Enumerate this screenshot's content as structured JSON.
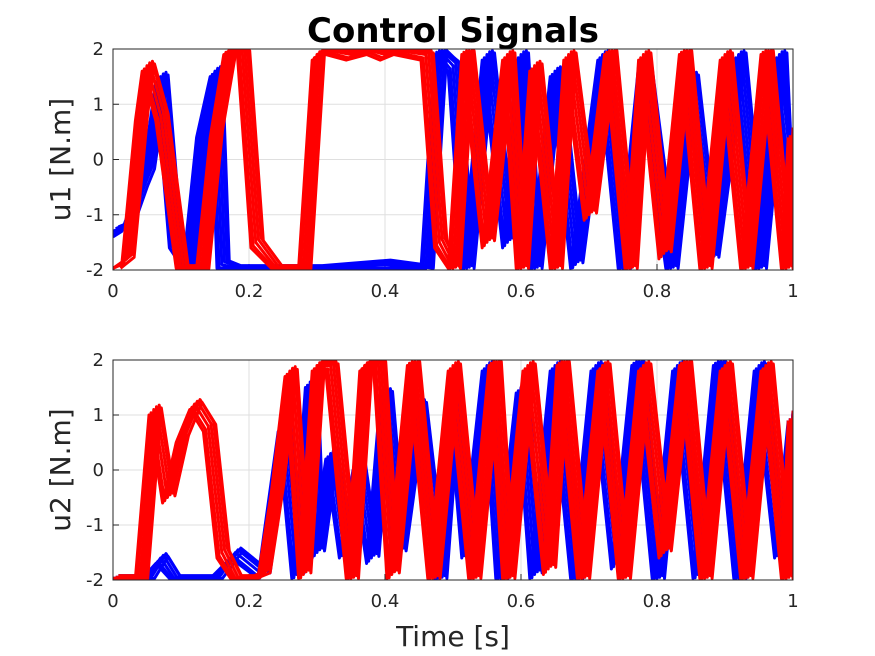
{
  "chart_data": {
    "title": "Control Signals",
    "xlabel": "Time [s]",
    "grid": true,
    "colors": {
      "series_a": "#0000ff",
      "series_b": "#ff0000",
      "axis": "#262626",
      "grid": "#dfdfdf"
    },
    "subplots": [
      {
        "type": "line",
        "ylabel": "u1 [N.m]",
        "xlim": [
          0,
          1
        ],
        "ylim": [
          -2,
          2
        ],
        "xticks": [
          "0",
          "0.2",
          "0.4",
          "0.6",
          "0.8",
          "1"
        ],
        "yticks": [
          "-2",
          "-1",
          "0",
          "1",
          "2"
        ],
        "series": [
          {
            "color": "#0000ff",
            "x": [
              0,
              0.02,
              0.04,
              0.05,
              0.07,
              0.09,
              0.11,
              0.13,
              0.15,
              0.16,
              0.18,
              0.22,
              0.26,
              0.3,
              0.4,
              0.46,
              0.48,
              0.5,
              0.52,
              0.55,
              0.58,
              0.6,
              0.62,
              0.65,
              0.68,
              0.72,
              0.75,
              0.78,
              0.82,
              0.85,
              0.88,
              0.92,
              0.95,
              0.98,
              1
            ],
            "y": [
              -1.3,
              -1.2,
              -0.5,
              -0.2,
              1.5,
              -1.5,
              -2,
              0.5,
              1.6,
              -1.9,
              -2,
              -2,
              -2,
              -2,
              -1.9,
              -2,
              2,
              1.7,
              -2,
              1.9,
              -1.5,
              1.9,
              -2,
              1.6,
              -1.9,
              1.9,
              -2,
              1.8,
              -2,
              1.5,
              -1.8,
              1.9,
              -2,
              1.9,
              -0.5
            ]
          },
          {
            "color": "#ff0000",
            "x": [
              0,
              0.02,
              0.04,
              0.05,
              0.07,
              0.1,
              0.13,
              0.15,
              0.17,
              0.19,
              0.21,
              0.24,
              0.28,
              0.3,
              0.32,
              0.35,
              0.38,
              0.4,
              0.42,
              0.46,
              0.48,
              0.5,
              0.52,
              0.55,
              0.58,
              0.6,
              0.62,
              0.65,
              0.67,
              0.7,
              0.73,
              0.76,
              0.78,
              0.81,
              0.84,
              0.87,
              0.9,
              0.93,
              0.96,
              0.99,
              1
            ],
            "y": [
              -2,
              -1.8,
              0.8,
              1.7,
              0.8,
              -2,
              -2,
              0.5,
              2,
              2,
              -1.5,
              -2,
              -2,
              1.9,
              2,
              1.9,
              2,
              1.9,
              2,
              1.9,
              -1.5,
              -2,
              2,
              -1.5,
              1.9,
              -2,
              1.7,
              -2,
              1.9,
              -1,
              2,
              -2,
              1.9,
              -1.7,
              2,
              -2,
              1.9,
              -2,
              2,
              -2,
              0.5
            ]
          }
        ]
      },
      {
        "type": "line",
        "ylabel": "u2 [N.m]",
        "xlim": [
          0,
          1
        ],
        "ylim": [
          -2,
          2
        ],
        "xticks": [
          "0",
          "0.2",
          "0.4",
          "0.6",
          "0.8",
          "1"
        ],
        "yticks": [
          "-2",
          "-1",
          "0",
          "1",
          "2"
        ],
        "series": [
          {
            "color": "#0000ff",
            "x": [
              0,
              0.05,
              0.07,
              0.09,
              0.15,
              0.18,
              0.22,
              0.25,
              0.27,
              0.29,
              0.3,
              0.32,
              0.34,
              0.36,
              0.38,
              0.4,
              0.42,
              0.45,
              0.48,
              0.5,
              0.52,
              0.55,
              0.57,
              0.6,
              0.62,
              0.65,
              0.68,
              0.71,
              0.74,
              0.77,
              0.8,
              0.83,
              0.86,
              0.89,
              0.92,
              0.95,
              0.98,
              1
            ],
            "y": [
              -2,
              -2,
              -1.6,
              -2,
              -2,
              -1.5,
              -1.9,
              0.8,
              -1.9,
              1.6,
              -1.5,
              0.3,
              -1.5,
              0.1,
              -1.6,
              1.4,
              -1.5,
              1.2,
              -2,
              1.4,
              -1.5,
              1.9,
              -2,
              1.5,
              -1.9,
              1.9,
              -2,
              1.9,
              -1.7,
              2,
              -2,
              1.9,
              -1.9,
              2,
              -2,
              1.9,
              -1.5,
              1.0
            ]
          },
          {
            "color": "#ff0000",
            "x": [
              0,
              0.04,
              0.06,
              0.08,
              0.1,
              0.12,
              0.14,
              0.16,
              0.18,
              0.2,
              0.22,
              0.24,
              0.26,
              0.28,
              0.3,
              0.32,
              0.35,
              0.37,
              0.39,
              0.41,
              0.44,
              0.47,
              0.5,
              0.53,
              0.56,
              0.58,
              0.61,
              0.64,
              0.66,
              0.69,
              0.72,
              0.75,
              0.78,
              0.81,
              0.84,
              0.87,
              0.9,
              0.93,
              0.96,
              0.99,
              1
            ],
            "y": [
              -2,
              -2,
              1.1,
              -0.5,
              0.6,
              1.2,
              0.8,
              -1.5,
              -2,
              -2,
              -1.9,
              -0.3,
              1.8,
              -1.9,
              1.9,
              1.9,
              -2,
              1.9,
              2,
              -1.9,
              2,
              -2,
              1.9,
              -2,
              2,
              -2,
              1.9,
              -1.8,
              2,
              -2,
              1.9,
              -2,
              1.9,
              -1.5,
              2,
              -2,
              1.9,
              -2,
              1.9,
              -2,
              1.0
            ]
          }
        ]
      }
    ]
  }
}
